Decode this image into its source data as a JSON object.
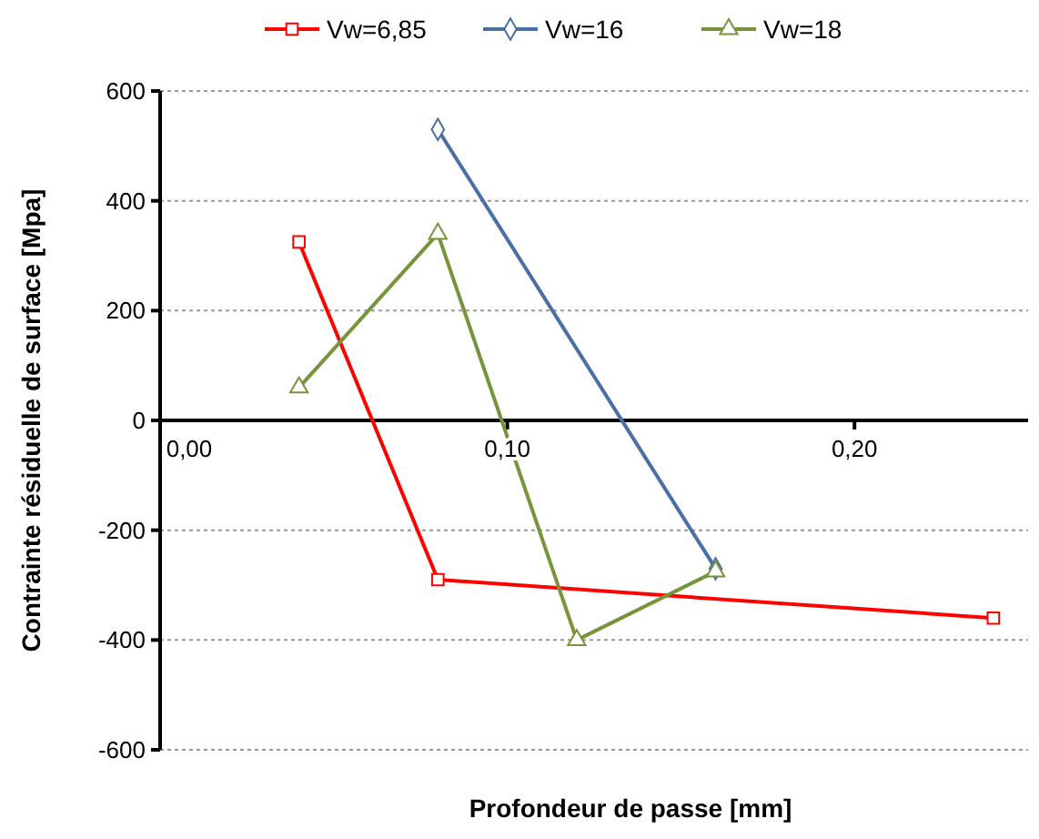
{
  "chart_data": {
    "type": "line",
    "xlabel": "Profondeur de passe [mm]",
    "ylabel": "Contrainte résiduelle de surface [Mpa]",
    "xlim": [
      0,
      0.25
    ],
    "xticks": [
      {
        "value": 0,
        "label": "0,00"
      },
      {
        "value": 0.1,
        "label": "0,10"
      },
      {
        "value": 0.2,
        "label": "0,20"
      }
    ],
    "ylim": [
      -600,
      600
    ],
    "yticks": [
      -600,
      -400,
      -200,
      0,
      200,
      400,
      600
    ],
    "grid": "y",
    "legend": "top",
    "series": [
      {
        "name": "Vw=6,85",
        "color": "#ff0000",
        "marker": "square",
        "x": [
          0.04,
          0.08,
          0.24
        ],
        "values": [
          325,
          -290,
          -360
        ]
      },
      {
        "name": "Vw=16",
        "color": "#4a6fa5",
        "marker": "diamond",
        "x": [
          0.08,
          0.16
        ],
        "values": [
          530,
          -270
        ]
      },
      {
        "name": "Vw=18",
        "color": "#77933c",
        "marker": "triangle",
        "x": [
          0.04,
          0.08,
          0.12,
          0.16
        ],
        "values": [
          60,
          340,
          -400,
          -275
        ]
      }
    ]
  }
}
